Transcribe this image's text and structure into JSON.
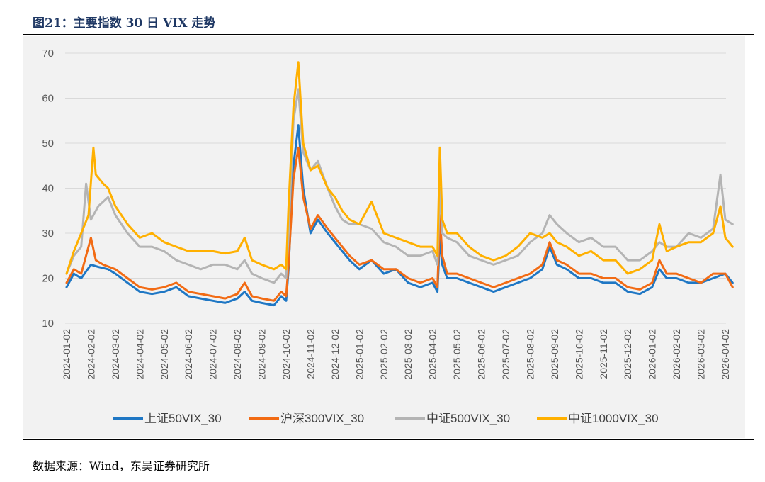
{
  "header": {
    "title": "图21：主要指数 30 日 VIX 走势"
  },
  "footer": {
    "source": "数据来源：Wind，东吴证券研究所"
  },
  "chart_data": {
    "type": "line",
    "title": "图21：主要指数 30 日 VIX 走势",
    "xlabel": "",
    "ylabel": "",
    "ylim": [
      10,
      70
    ],
    "yticks": [
      "10",
      "20",
      "30",
      "40",
      "50",
      "60",
      "70"
    ],
    "grid": true,
    "legend_position": "bottom",
    "categories": [
      "2024-01-02",
      "2024-02-02",
      "2024-03-02",
      "2024-04-02",
      "2024-05-02",
      "2024-06-02",
      "2024-07-02",
      "2024-08-02",
      "2024-09-02",
      "2024-10-02",
      "2024-11-02",
      "2024-12-02",
      "2025-01-02",
      "2025-02-02",
      "2025-03-02",
      "2025-04-02",
      "2025-05-02",
      "2025-06-02",
      "2025-07-02",
      "2025-08-02",
      "2025-09-02",
      "2025-10-02",
      "2025-11-02",
      "2025-12-02",
      "2026-01-02",
      "2026-02-02",
      "2026-03-02",
      "2026-04-02"
    ],
    "series": [
      {
        "name": "上证50VIX_30",
        "color": "#1f77c4",
        "points": [
          [
            0,
            18
          ],
          [
            0.3,
            21
          ],
          [
            0.6,
            20
          ],
          [
            1.0,
            23
          ],
          [
            1.3,
            22.5
          ],
          [
            1.7,
            22
          ],
          [
            2.0,
            21
          ],
          [
            2.5,
            19
          ],
          [
            3.0,
            17
          ],
          [
            3.5,
            16.5
          ],
          [
            4.0,
            17
          ],
          [
            4.5,
            18
          ],
          [
            5.0,
            16
          ],
          [
            5.5,
            15.5
          ],
          [
            6.0,
            15
          ],
          [
            6.5,
            14.5
          ],
          [
            7.0,
            15.5
          ],
          [
            7.3,
            17
          ],
          [
            7.6,
            15
          ],
          [
            8.0,
            14.5
          ],
          [
            8.5,
            14
          ],
          [
            8.8,
            16
          ],
          [
            9.0,
            15
          ],
          [
            9.1,
            22
          ],
          [
            9.3,
            45
          ],
          [
            9.5,
            54
          ],
          [
            9.7,
            40
          ],
          [
            10.0,
            30
          ],
          [
            10.3,
            33
          ],
          [
            10.7,
            30
          ],
          [
            11.0,
            28
          ],
          [
            11.3,
            26
          ],
          [
            11.6,
            24
          ],
          [
            12.0,
            22
          ],
          [
            12.5,
            24
          ],
          [
            13.0,
            21
          ],
          [
            13.5,
            22
          ],
          [
            14.0,
            19
          ],
          [
            14.5,
            18
          ],
          [
            15.0,
            19
          ],
          [
            15.2,
            17
          ],
          [
            15.3,
            29
          ],
          [
            15.4,
            23
          ],
          [
            15.6,
            20
          ],
          [
            16.0,
            20
          ],
          [
            16.5,
            19
          ],
          [
            17.0,
            18
          ],
          [
            17.5,
            17
          ],
          [
            18.0,
            18
          ],
          [
            18.5,
            19
          ],
          [
            19.0,
            20
          ],
          [
            19.5,
            22
          ],
          [
            19.8,
            27
          ],
          [
            20.1,
            23
          ],
          [
            20.5,
            22
          ],
          [
            21.0,
            20
          ],
          [
            21.5,
            20
          ],
          [
            22.0,
            19
          ],
          [
            22.5,
            19
          ],
          [
            23.0,
            17
          ],
          [
            23.5,
            16.5
          ],
          [
            24.0,
            18
          ],
          [
            24.3,
            22
          ],
          [
            24.6,
            20
          ],
          [
            25.0,
            20
          ],
          [
            25.5,
            19
          ],
          [
            26.0,
            19
          ],
          [
            26.5,
            20
          ],
          [
            27.0,
            21
          ],
          [
            27.3,
            19
          ]
        ]
      },
      {
        "name": "沪深300VIX_30",
        "color": "#f26b14",
        "points": [
          [
            0,
            19
          ],
          [
            0.3,
            22
          ],
          [
            0.6,
            21
          ],
          [
            1.0,
            29
          ],
          [
            1.2,
            24
          ],
          [
            1.5,
            23
          ],
          [
            2.0,
            22
          ],
          [
            2.5,
            20
          ],
          [
            3.0,
            18
          ],
          [
            3.5,
            17.5
          ],
          [
            4.0,
            18
          ],
          [
            4.5,
            19
          ],
          [
            5.0,
            17
          ],
          [
            5.5,
            16.5
          ],
          [
            6.0,
            16
          ],
          [
            6.5,
            15.5
          ],
          [
            7.0,
            16.5
          ],
          [
            7.3,
            19
          ],
          [
            7.6,
            16
          ],
          [
            8.0,
            15.5
          ],
          [
            8.5,
            15
          ],
          [
            8.8,
            17
          ],
          [
            9.0,
            16
          ],
          [
            9.1,
            23
          ],
          [
            9.3,
            42
          ],
          [
            9.5,
            49
          ],
          [
            9.7,
            38
          ],
          [
            10.0,
            31
          ],
          [
            10.3,
            34
          ],
          [
            10.7,
            31
          ],
          [
            11.0,
            29
          ],
          [
            11.3,
            27
          ],
          [
            11.6,
            25
          ],
          [
            12.0,
            23
          ],
          [
            12.5,
            24
          ],
          [
            13.0,
            22
          ],
          [
            13.5,
            22
          ],
          [
            14.0,
            20
          ],
          [
            14.5,
            19
          ],
          [
            15.0,
            20
          ],
          [
            15.2,
            18
          ],
          [
            15.3,
            34
          ],
          [
            15.4,
            25
          ],
          [
            15.6,
            21
          ],
          [
            16.0,
            21
          ],
          [
            16.5,
            20
          ],
          [
            17.0,
            19
          ],
          [
            17.5,
            18
          ],
          [
            18.0,
            19
          ],
          [
            18.5,
            20
          ],
          [
            19.0,
            21
          ],
          [
            19.5,
            23
          ],
          [
            19.8,
            28
          ],
          [
            20.1,
            24
          ],
          [
            20.5,
            23
          ],
          [
            21.0,
            21
          ],
          [
            21.5,
            21
          ],
          [
            22.0,
            20
          ],
          [
            22.5,
            20
          ],
          [
            23.0,
            18
          ],
          [
            23.5,
            17.5
          ],
          [
            24.0,
            19
          ],
          [
            24.3,
            24
          ],
          [
            24.6,
            21
          ],
          [
            25.0,
            21
          ],
          [
            25.5,
            20
          ],
          [
            26.0,
            19
          ],
          [
            26.5,
            21
          ],
          [
            27.0,
            21
          ],
          [
            27.3,
            18
          ]
        ]
      },
      {
        "name": "中证500VIX_30",
        "color": "#b4b4b4",
        "points": [
          [
            0,
            21
          ],
          [
            0.3,
            25
          ],
          [
            0.6,
            27
          ],
          [
            0.8,
            41
          ],
          [
            1.0,
            33
          ],
          [
            1.3,
            36
          ],
          [
            1.7,
            38
          ],
          [
            2.0,
            34
          ],
          [
            2.5,
            30
          ],
          [
            3.0,
            27
          ],
          [
            3.5,
            27
          ],
          [
            4.0,
            26
          ],
          [
            4.5,
            24
          ],
          [
            5.0,
            23
          ],
          [
            5.5,
            22
          ],
          [
            6.0,
            23
          ],
          [
            6.5,
            23
          ],
          [
            7.0,
            22
          ],
          [
            7.3,
            24
          ],
          [
            7.6,
            21
          ],
          [
            8.0,
            20
          ],
          [
            8.5,
            19
          ],
          [
            8.8,
            21
          ],
          [
            9.0,
            20
          ],
          [
            9.1,
            30
          ],
          [
            9.3,
            55
          ],
          [
            9.5,
            62
          ],
          [
            9.7,
            48
          ],
          [
            10.0,
            44
          ],
          [
            10.3,
            46
          ],
          [
            10.7,
            40
          ],
          [
            11.0,
            36
          ],
          [
            11.3,
            33
          ],
          [
            11.6,
            32
          ],
          [
            12.0,
            32
          ],
          [
            12.5,
            31
          ],
          [
            13.0,
            28
          ],
          [
            13.5,
            27
          ],
          [
            14.0,
            25
          ],
          [
            14.5,
            25
          ],
          [
            15.0,
            26
          ],
          [
            15.2,
            23
          ],
          [
            15.3,
            40
          ],
          [
            15.4,
            30
          ],
          [
            15.6,
            29
          ],
          [
            16.0,
            28
          ],
          [
            16.5,
            25
          ],
          [
            17.0,
            24
          ],
          [
            17.5,
            23
          ],
          [
            18.0,
            24
          ],
          [
            18.5,
            25
          ],
          [
            19.0,
            28
          ],
          [
            19.5,
            30
          ],
          [
            19.8,
            34
          ],
          [
            20.1,
            32
          ],
          [
            20.5,
            30
          ],
          [
            21.0,
            28
          ],
          [
            21.5,
            29
          ],
          [
            22.0,
            27
          ],
          [
            22.5,
            27
          ],
          [
            23.0,
            24
          ],
          [
            23.5,
            24
          ],
          [
            24.0,
            26
          ],
          [
            24.3,
            28
          ],
          [
            24.6,
            27
          ],
          [
            25.0,
            27
          ],
          [
            25.5,
            30
          ],
          [
            26.0,
            29
          ],
          [
            26.5,
            31
          ],
          [
            26.8,
            43
          ],
          [
            27.0,
            33
          ],
          [
            27.3,
            32
          ]
        ]
      },
      {
        "name": "中证1000VIX_30",
        "color": "#ffb000",
        "points": [
          [
            0,
            21
          ],
          [
            0.3,
            26
          ],
          [
            0.6,
            30
          ],
          [
            0.9,
            34
          ],
          [
            1.1,
            49
          ],
          [
            1.2,
            43
          ],
          [
            1.5,
            41
          ],
          [
            1.7,
            40
          ],
          [
            2.0,
            36
          ],
          [
            2.5,
            32
          ],
          [
            3.0,
            29
          ],
          [
            3.5,
            30
          ],
          [
            4.0,
            28
          ],
          [
            4.5,
            27
          ],
          [
            5.0,
            26
          ],
          [
            5.5,
            26
          ],
          [
            6.0,
            26
          ],
          [
            6.5,
            25.5
          ],
          [
            7.0,
            26
          ],
          [
            7.3,
            29
          ],
          [
            7.6,
            24
          ],
          [
            8.0,
            23
          ],
          [
            8.5,
            22
          ],
          [
            8.8,
            23
          ],
          [
            9.0,
            22
          ],
          [
            9.1,
            36
          ],
          [
            9.3,
            58
          ],
          [
            9.5,
            68
          ],
          [
            9.7,
            50
          ],
          [
            10.0,
            44
          ],
          [
            10.3,
            45
          ],
          [
            10.7,
            40
          ],
          [
            11.0,
            38
          ],
          [
            11.3,
            35
          ],
          [
            11.6,
            33
          ],
          [
            12.0,
            32
          ],
          [
            12.5,
            37
          ],
          [
            13.0,
            30
          ],
          [
            13.5,
            29
          ],
          [
            14.0,
            28
          ],
          [
            14.5,
            27
          ],
          [
            15.0,
            27
          ],
          [
            15.2,
            25
          ],
          [
            15.3,
            49
          ],
          [
            15.4,
            33
          ],
          [
            15.6,
            30
          ],
          [
            16.0,
            30
          ],
          [
            16.5,
            27
          ],
          [
            17.0,
            25
          ],
          [
            17.5,
            24
          ],
          [
            18.0,
            25
          ],
          [
            18.5,
            27
          ],
          [
            19.0,
            30
          ],
          [
            19.5,
            29
          ],
          [
            19.8,
            30
          ],
          [
            20.1,
            28
          ],
          [
            20.5,
            27
          ],
          [
            21.0,
            25
          ],
          [
            21.5,
            26
          ],
          [
            22.0,
            24
          ],
          [
            22.5,
            24
          ],
          [
            23.0,
            21
          ],
          [
            23.5,
            22
          ],
          [
            24.0,
            24
          ],
          [
            24.3,
            32
          ],
          [
            24.6,
            26
          ],
          [
            25.0,
            27
          ],
          [
            25.5,
            28
          ],
          [
            26.0,
            28
          ],
          [
            26.5,
            30
          ],
          [
            26.8,
            36
          ],
          [
            27.0,
            29
          ],
          [
            27.3,
            27
          ]
        ]
      }
    ]
  }
}
